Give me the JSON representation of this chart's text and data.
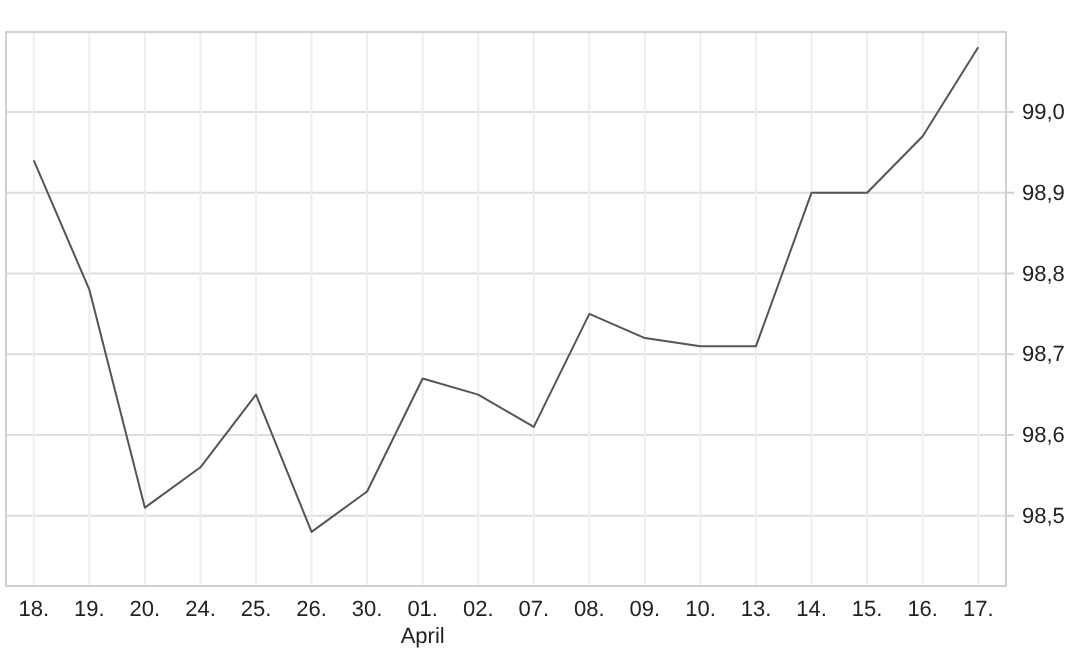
{
  "chart_data": {
    "type": "line",
    "categories": [
      "18.",
      "19.",
      "20.",
      "24.",
      "25.",
      "26.",
      "30.",
      "01.\nApril",
      "02.",
      "07.",
      "08.",
      "09.",
      "10.",
      "13.",
      "14.",
      "15.",
      "16.",
      "17."
    ],
    "series": [
      {
        "color": "#555555",
        "values": [
          98.94,
          98.78,
          98.51,
          98.56,
          98.65,
          98.48,
          98.53,
          98.67,
          98.65,
          98.61,
          98.75,
          98.72,
          98.71,
          98.71,
          98.9,
          98.9,
          98.97,
          99.08
        ]
      }
    ],
    "ylim": [
      98.413,
      99.099
    ],
    "yticks": [
      {
        "value": 98.5,
        "label": "98,5"
      },
      {
        "value": 98.6,
        "label": "98,6"
      },
      {
        "value": 98.7,
        "label": "98,7"
      },
      {
        "value": 98.8,
        "label": "98,8"
      },
      {
        "value": 98.9,
        "label": "98,9"
      },
      {
        "value": 99.0,
        "label": "99,0"
      }
    ],
    "grid": true,
    "marker": "none",
    "line_style": "solid"
  }
}
